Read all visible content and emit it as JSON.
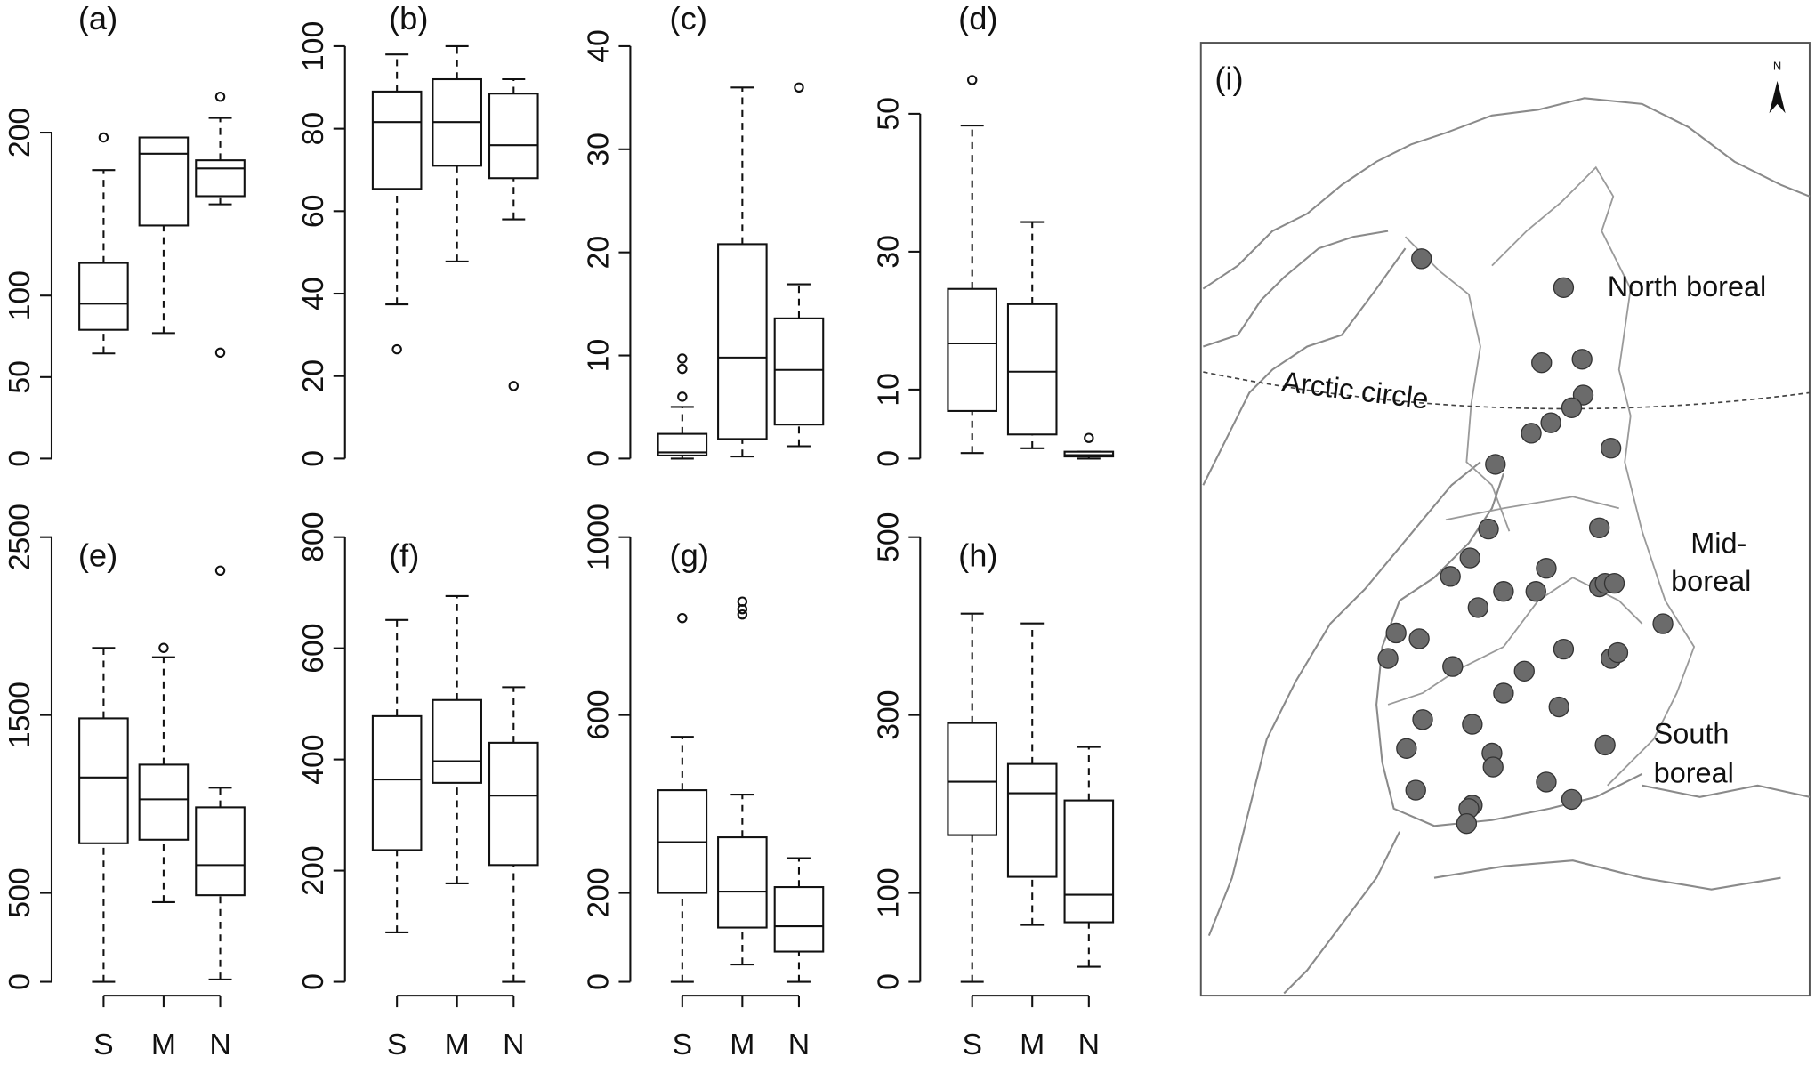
{
  "chart_data": [
    {
      "type": "box",
      "title": "(a)",
      "categories": [
        null,
        null,
        null
      ],
      "ylim": [
        0,
        253
      ],
      "yticks": [
        0,
        50,
        100,
        200
      ],
      "boxes": [
        {
          "min": 64.5,
          "q1": 79,
          "median": 95,
          "q3": 120,
          "max": 177,
          "outliers": [
            197
          ]
        },
        {
          "min": 77,
          "q1": 143,
          "median": 187,
          "q3": 197,
          "max": 197,
          "outliers": []
        },
        {
          "min": 156,
          "q1": 161,
          "median": 178,
          "q3": 183,
          "max": 209,
          "outliers": [
            222,
            65
          ]
        }
      ]
    },
    {
      "type": "box",
      "title": "(b)",
      "categories": [
        null,
        null,
        null
      ],
      "ylim": [
        0,
        100
      ],
      "yticks": [
        0,
        20,
        40,
        60,
        80,
        100
      ],
      "boxes": [
        {
          "min": 37.4,
          "q1": 65.4,
          "median": 81.6,
          "q3": 89,
          "max": 98,
          "outliers": [
            26.5
          ]
        },
        {
          "min": 47.8,
          "q1": 71,
          "median": 81.6,
          "q3": 92,
          "max": 100,
          "outliers": []
        },
        {
          "min": 58,
          "q1": 68,
          "median": 76,
          "q3": 88.5,
          "max": 92,
          "outliers": [
            17.6
          ]
        }
      ]
    },
    {
      "type": "box",
      "title": "(c)",
      "categories": [
        null,
        null,
        null
      ],
      "ylim": [
        0,
        40
      ],
      "yticks": [
        0,
        10,
        20,
        30,
        40
      ],
      "boxes": [
        {
          "min": 0,
          "q1": 0.3,
          "median": 0.6,
          "q3": 2.4,
          "max": 5,
          "outliers": [
            6,
            8.7,
            9.7
          ]
        },
        {
          "min": 0.2,
          "q1": 1.9,
          "median": 9.8,
          "q3": 20.8,
          "max": 36,
          "outliers": []
        },
        {
          "min": 1.2,
          "q1": 3.3,
          "median": 8.6,
          "q3": 13.6,
          "max": 16.9,
          "outliers": [
            36
          ]
        }
      ]
    },
    {
      "type": "box",
      "title": "(d)",
      "categories": [
        null,
        null,
        null
      ],
      "ylim": [
        0,
        59.8
      ],
      "yticks": [
        0,
        10,
        30,
        50
      ],
      "boxes": [
        {
          "min": 0.8,
          "q1": 6.9,
          "median": 16.7,
          "q3": 24.6,
          "max": 48.3,
          "outliers": [
            54.9
          ]
        },
        {
          "min": 1.5,
          "q1": 3.5,
          "median": 12.6,
          "q3": 22.4,
          "max": 34.3,
          "outliers": []
        },
        {
          "min": 0,
          "q1": 0.3,
          "median": 0.5,
          "q3": 1,
          "max": 1,
          "outliers": [
            3
          ]
        }
      ]
    },
    {
      "type": "box",
      "title": "(e)",
      "categories": [
        "S",
        "M",
        "N"
      ],
      "ylim": [
        0,
        2500
      ],
      "yticks": [
        0,
        500,
        1500,
        2500
      ],
      "boxes": [
        {
          "min": 0,
          "q1": 779,
          "median": 1149,
          "q3": 1481,
          "max": 1877,
          "outliers": []
        },
        {
          "min": 448,
          "q1": 799,
          "median": 1026,
          "q3": 1221,
          "max": 1825,
          "outliers": [
            1877
          ]
        },
        {
          "min": 13,
          "q1": 487,
          "median": 656,
          "q3": 981,
          "max": 1091,
          "outliers": [
            2312
          ]
        }
      ]
    },
    {
      "type": "box",
      "title": "(f)",
      "categories": [
        "S",
        "M",
        "N"
      ],
      "ylim": [
        0,
        800
      ],
      "yticks": [
        0,
        200,
        400,
        600,
        800
      ],
      "boxes": [
        {
          "min": 89,
          "q1": 237,
          "median": 364,
          "q3": 478,
          "max": 651,
          "outliers": []
        },
        {
          "min": 177,
          "q1": 358,
          "median": 397,
          "q3": 507,
          "max": 694,
          "outliers": []
        },
        {
          "min": 0,
          "q1": 210,
          "median": 335,
          "q3": 430,
          "max": 530,
          "outliers": []
        }
      ]
    },
    {
      "type": "box",
      "title": "(g)",
      "categories": [
        "S",
        "M",
        "N"
      ],
      "ylim": [
        0,
        1000
      ],
      "yticks": [
        0,
        200,
        600,
        1000
      ],
      "boxes": [
        {
          "min": 0,
          "q1": 200,
          "median": 314,
          "q3": 431,
          "max": 551,
          "outliers": [
            818
          ]
        },
        {
          "min": 39,
          "q1": 122,
          "median": 203,
          "q3": 325,
          "max": 421,
          "outliers": [
            855,
            838,
            826
          ]
        },
        {
          "min": 0,
          "q1": 68,
          "median": 125,
          "q3": 213,
          "max": 278,
          "outliers": []
        }
      ]
    },
    {
      "type": "box",
      "title": "(h)",
      "categories": [
        "S",
        "M",
        "N"
      ],
      "ylim": [
        0,
        500
      ],
      "yticks": [
        0,
        100,
        300,
        500
      ],
      "boxes": [
        {
          "min": 0,
          "q1": 165,
          "median": 225,
          "q3": 291,
          "max": 414,
          "outliers": []
        },
        {
          "min": 64,
          "q1": 118,
          "median": 212,
          "q3": 245,
          "max": 403,
          "outliers": []
        },
        {
          "min": 17,
          "q1": 67,
          "median": 98,
          "q3": 204,
          "max": 264,
          "outliers": []
        }
      ]
    }
  ],
  "map": {
    "label": "(i)",
    "north": "N",
    "annotations": [
      "North boreal",
      "Arctic circle",
      "Mid-",
      "boreal",
      "South",
      "boreal"
    ]
  }
}
